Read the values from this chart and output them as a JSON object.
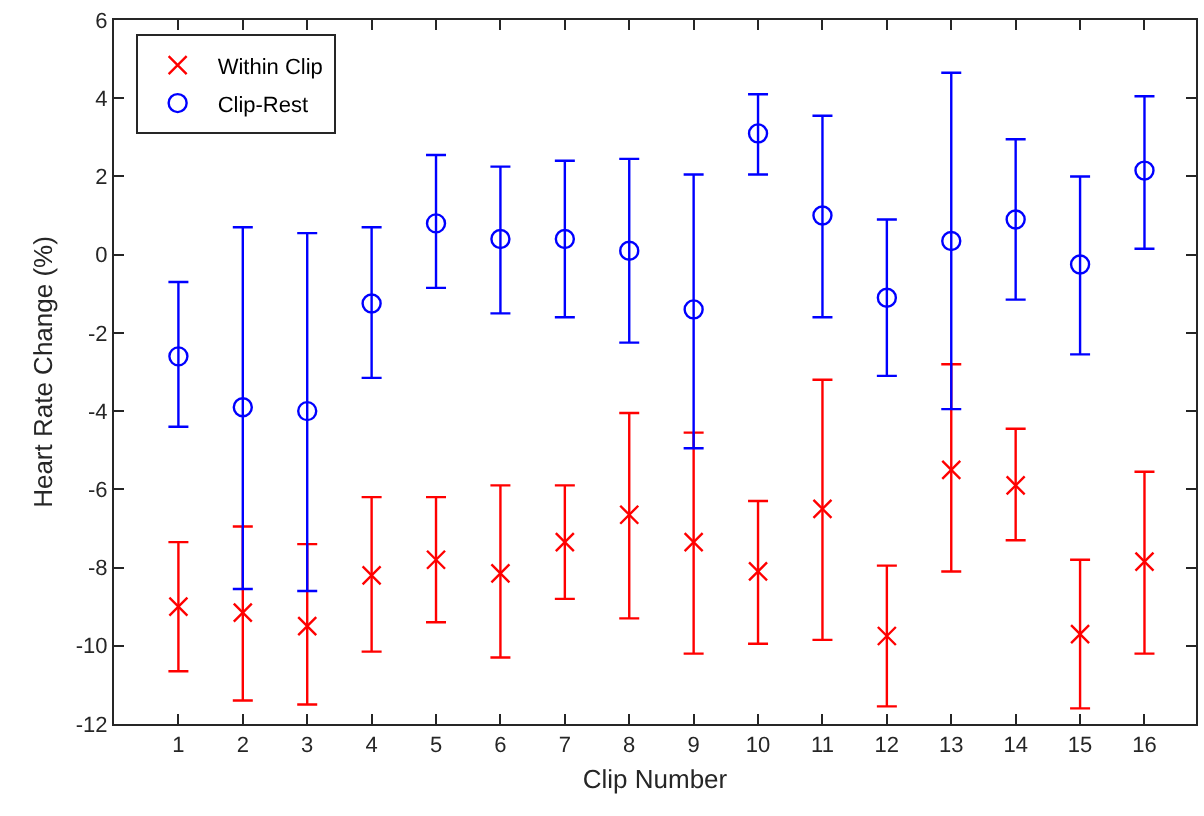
{
  "chart_data": {
    "type": "scatter",
    "xlabel": "Clip Number",
    "ylabel": "Heart Rate Change (%)",
    "x": [
      1,
      2,
      3,
      4,
      5,
      6,
      7,
      8,
      9,
      10,
      11,
      12,
      13,
      14,
      15,
      16
    ],
    "xlim": [
      0,
      16.8
    ],
    "xticks": [
      1,
      2,
      3,
      4,
      5,
      6,
      7,
      8,
      9,
      10,
      11,
      12,
      13,
      14,
      15,
      16
    ],
    "ylim": [
      -12,
      6
    ],
    "yticks": [
      -12,
      -10,
      -8,
      -6,
      -4,
      -2,
      0,
      2,
      4,
      6
    ],
    "grid": false,
    "legend": "top left",
    "series": [
      {
        "name": "Within Clip",
        "color": "#ff0000",
        "marker": "cross",
        "values": [
          -9.0,
          -9.15,
          -9.5,
          -8.2,
          -7.8,
          -8.15,
          -7.35,
          -6.65,
          -7.35,
          -8.1,
          -6.5,
          -9.75,
          -5.5,
          -5.9,
          -9.7,
          -7.85
        ],
        "errors": [
          [
            -10.65,
            -7.35
          ],
          [
            -11.4,
            -6.95
          ],
          [
            -11.5,
            -7.4
          ],
          [
            -10.15,
            -6.2
          ],
          [
            -9.4,
            -6.2
          ],
          [
            -10.3,
            -5.9
          ],
          [
            -8.8,
            -5.9
          ],
          [
            -9.3,
            -4.05
          ],
          [
            -10.2,
            -4.55
          ],
          [
            -9.95,
            -6.3
          ],
          [
            -9.85,
            -3.2
          ],
          [
            -11.55,
            -7.95
          ],
          [
            -8.1,
            -2.8
          ],
          [
            -7.3,
            -4.45
          ],
          [
            -11.6,
            -7.8
          ],
          [
            -10.2,
            -5.55
          ]
        ]
      },
      {
        "name": "Clip-Rest",
        "color": "#0000ff",
        "marker": "circle",
        "values": [
          -2.6,
          -3.9,
          -4.0,
          -1.25,
          0.8,
          0.4,
          0.4,
          0.1,
          -1.4,
          3.1,
          1.0,
          -1.1,
          0.35,
          0.9,
          -0.25,
          2.15
        ],
        "errors": [
          [
            -4.4,
            -0.7
          ],
          [
            -8.55,
            0.7
          ],
          [
            -8.6,
            0.55
          ],
          [
            -3.15,
            0.7
          ],
          [
            -0.85,
            2.55
          ],
          [
            -1.5,
            2.25
          ],
          [
            -1.6,
            2.4
          ],
          [
            -2.25,
            2.45
          ],
          [
            -4.95,
            2.05
          ],
          [
            2.05,
            4.1
          ],
          [
            -1.6,
            3.55
          ],
          [
            -3.1,
            0.9
          ],
          [
            -3.95,
            4.65
          ],
          [
            -1.15,
            2.95
          ],
          [
            -2.55,
            2.0
          ],
          [
            0.15,
            4.05
          ]
        ]
      }
    ]
  }
}
